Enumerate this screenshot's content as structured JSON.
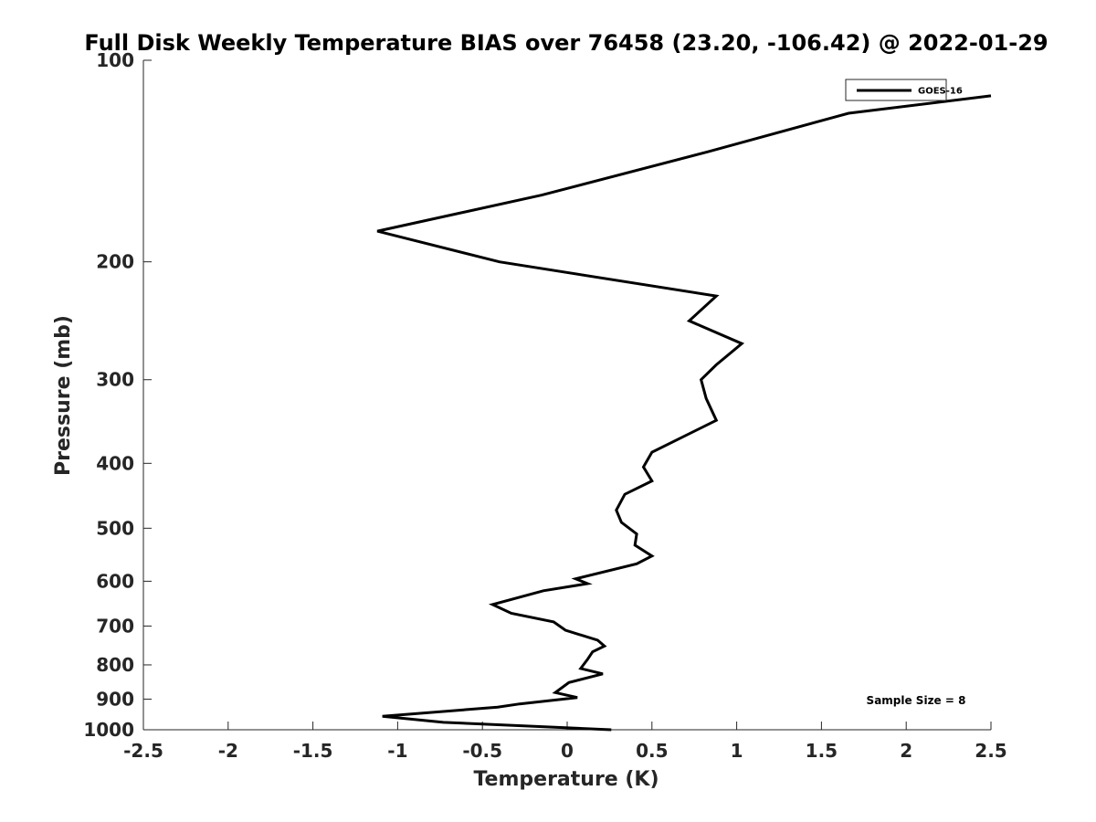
{
  "chart_data": {
    "type": "line",
    "title": "Full Disk Weekly Temperature BIAS over 76458 (23.20, -106.42) @ 2022-01-29",
    "xlabel": "Temperature (K)",
    "ylabel": "Pressure (mb)",
    "xlim": [
      -2.5,
      2.5
    ],
    "ylim": [
      1000,
      100
    ],
    "y_scale": "log",
    "x_ticks": [
      -2.5,
      -2,
      -1.5,
      -1,
      -0.5,
      0,
      0.5,
      1,
      1.5,
      2,
      2.5
    ],
    "x_tick_labels": [
      "-2.5",
      "-2",
      "-1.5",
      "-1",
      "-0.5",
      "0",
      "0.5",
      "1",
      "1.5",
      "2",
      "2.5"
    ],
    "y_ticks": [
      100,
      200,
      300,
      400,
      500,
      600,
      700,
      800,
      900,
      1000
    ],
    "y_tick_labels": [
      "100",
      "200",
      "300",
      "400",
      "500",
      "600",
      "700",
      "800",
      "900",
      "1000"
    ],
    "grid": false,
    "legend_position": "top-right",
    "series": [
      {
        "name": "GOES-16",
        "color": "#000000",
        "points": [
          {
            "t": 2.5,
            "p": 113
          },
          {
            "t": 1.66,
            "p": 120
          },
          {
            "t": 0.83,
            "p": 137
          },
          {
            "t": -0.15,
            "p": 159
          },
          {
            "t": -1.12,
            "p": 180
          },
          {
            "t": -0.4,
            "p": 200
          },
          {
            "t": 0.88,
            "p": 225
          },
          {
            "t": 0.72,
            "p": 245
          },
          {
            "t": 1.03,
            "p": 265
          },
          {
            "t": 0.88,
            "p": 285
          },
          {
            "t": 0.79,
            "p": 300
          },
          {
            "t": 0.82,
            "p": 320
          },
          {
            "t": 0.88,
            "p": 345
          },
          {
            "t": 0.5,
            "p": 385
          },
          {
            "t": 0.45,
            "p": 405
          },
          {
            "t": 0.5,
            "p": 425
          },
          {
            "t": 0.34,
            "p": 445
          },
          {
            "t": 0.29,
            "p": 470
          },
          {
            "t": 0.32,
            "p": 490
          },
          {
            "t": 0.41,
            "p": 510
          },
          {
            "t": 0.4,
            "p": 530
          },
          {
            "t": 0.5,
            "p": 550
          },
          {
            "t": 0.41,
            "p": 565
          },
          {
            "t": 0.05,
            "p": 595
          },
          {
            "t": 0.12,
            "p": 605
          },
          {
            "t": -0.14,
            "p": 620
          },
          {
            "t": -0.44,
            "p": 650
          },
          {
            "t": -0.33,
            "p": 670
          },
          {
            "t": -0.08,
            "p": 690
          },
          {
            "t": -0.01,
            "p": 710
          },
          {
            "t": 0.18,
            "p": 735
          },
          {
            "t": 0.22,
            "p": 750
          },
          {
            "t": 0.15,
            "p": 765
          },
          {
            "t": 0.12,
            "p": 785
          },
          {
            "t": 0.08,
            "p": 810
          },
          {
            "t": 0.21,
            "p": 825
          },
          {
            "t": 0.01,
            "p": 850
          },
          {
            "t": -0.07,
            "p": 880
          },
          {
            "t": 0.06,
            "p": 895
          },
          {
            "t": -0.28,
            "p": 915
          },
          {
            "t": -0.41,
            "p": 925
          },
          {
            "t": -1.09,
            "p": 955
          },
          {
            "t": -0.73,
            "p": 975
          },
          {
            "t": 0.26,
            "p": 1000
          }
        ]
      }
    ],
    "annotation": "Sample Size = 8"
  }
}
